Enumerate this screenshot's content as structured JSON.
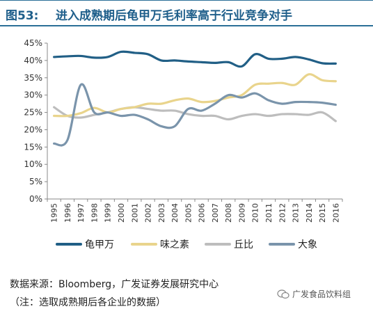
{
  "header": {
    "figure_label": "图53:",
    "title": "进入成熟期后龟甲万毛利率高于行业竞争对手"
  },
  "chart_data": {
    "type": "line",
    "title": "进入成熟期后龟甲万毛利率高于行业竞争对手",
    "xlabel": "",
    "ylabel": "",
    "ylim": [
      0,
      45
    ],
    "y_ticks": [
      "0%",
      "5%",
      "10%",
      "15%",
      "20%",
      "25%",
      "30%",
      "35%",
      "40%",
      "45%"
    ],
    "categories": [
      "1995",
      "1996",
      "1997",
      "1998",
      "1999",
      "2000",
      "2001",
      "2002",
      "2003",
      "2004",
      "2005",
      "2006",
      "2007",
      "2008",
      "2009",
      "2010",
      "2011",
      "2012",
      "2013",
      "2014",
      "2015",
      "2016"
    ],
    "legend_position": "bottom",
    "grid": false,
    "series": [
      {
        "name": "龟甲万",
        "color": "#215f86",
        "values": [
          41.0,
          41.2,
          41.3,
          40.8,
          41.0,
          42.5,
          42.2,
          41.8,
          40.0,
          40.0,
          39.7,
          39.5,
          39.3,
          39.5,
          38.3,
          41.8,
          40.5,
          40.5,
          41.0,
          40.3,
          39.2,
          39.1
        ]
      },
      {
        "name": "味之素",
        "color": "#e9d48c",
        "values": [
          24.0,
          24.0,
          24.8,
          26.3,
          25.0,
          26.0,
          26.5,
          27.5,
          27.5,
          28.5,
          29.0,
          28.0,
          28.3,
          29.3,
          30.0,
          33.0,
          33.3,
          33.5,
          33.0,
          36.0,
          34.3,
          34.0
        ]
      },
      {
        "name": "丘比",
        "color": "#bdbdbd",
        "values": [
          26.5,
          24.0,
          23.5,
          24.3,
          25.0,
          26.0,
          26.5,
          26.0,
          25.5,
          25.5,
          24.5,
          24.0,
          24.0,
          23.0,
          24.0,
          24.5,
          24.0,
          24.5,
          24.5,
          24.3,
          25.0,
          22.5
        ]
      },
      {
        "name": "大象",
        "color": "#7a94ab",
        "values": [
          16.0,
          17.0,
          33.0,
          25.0,
          25.0,
          24.0,
          24.3,
          23.0,
          21.0,
          21.0,
          26.0,
          25.5,
          27.5,
          30.0,
          29.3,
          30.5,
          28.5,
          27.5,
          28.0,
          28.0,
          27.8,
          27.2
        ]
      }
    ]
  },
  "footer": {
    "source": "数据来源：Bloomberg，广发证券发展研究中心",
    "note": "（注：选取成熟期后各企业的数据）",
    "watermark": "广发食品饮料组"
  }
}
